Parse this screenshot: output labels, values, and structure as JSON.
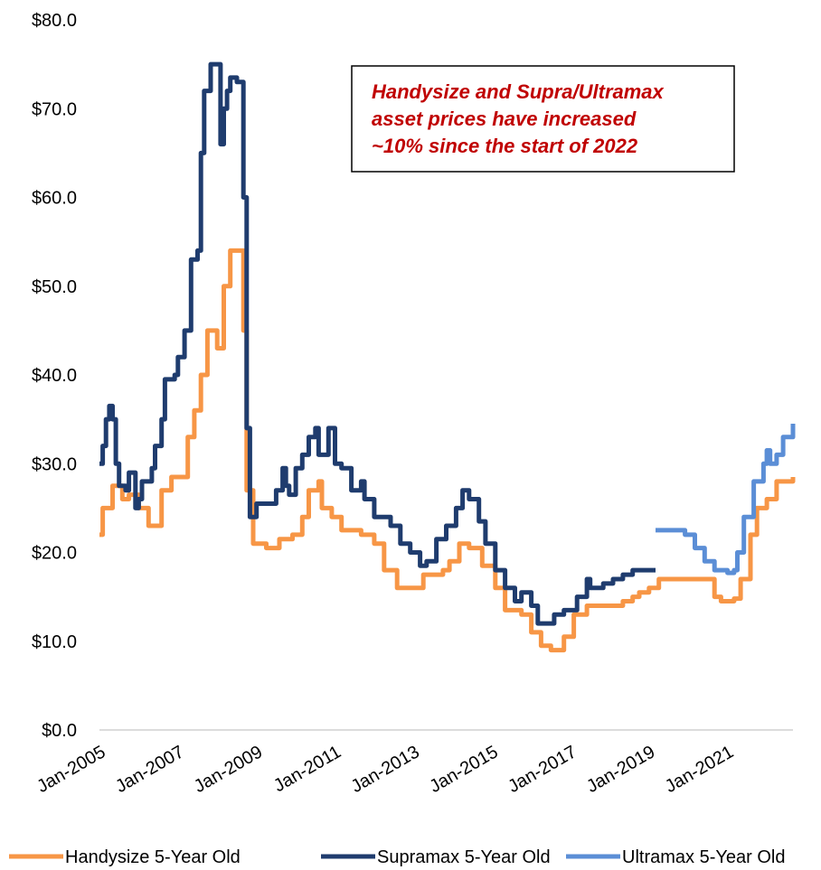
{
  "chart_data": {
    "type": "line",
    "annotation": [
      "Handysize and Supra/Ultramax",
      "asset prices have increased",
      "~10% since the start of 2022"
    ],
    "xlim": [
      "2005-01",
      "2022-09"
    ],
    "xticks": [
      {
        "value": "2005-01",
        "label": "Jan-2005"
      },
      {
        "value": "2007-01",
        "label": "Jan-2007"
      },
      {
        "value": "2009-01",
        "label": "Jan-2009"
      },
      {
        "value": "2011-01",
        "label": "Jan-2011"
      },
      {
        "value": "2013-01",
        "label": "Jan-2013"
      },
      {
        "value": "2015-01",
        "label": "Jan-2015"
      },
      {
        "value": "2017-01",
        "label": "Jan-2017"
      },
      {
        "value": "2019-01",
        "label": "Jan-2019"
      },
      {
        "value": "2021-01",
        "label": "Jan-2021"
      }
    ],
    "ylim": [
      0,
      80
    ],
    "yticks": [
      {
        "value": 0,
        "label": "$0.0"
      },
      {
        "value": 10,
        "label": "$10.0"
      },
      {
        "value": 20,
        "label": "$20.0"
      },
      {
        "value": 30,
        "label": "$30.0"
      },
      {
        "value": 40,
        "label": "$40.0"
      },
      {
        "value": 50,
        "label": "$50.0"
      },
      {
        "value": 60,
        "label": "$60.0"
      },
      {
        "value": 70,
        "label": "$70.0"
      },
      {
        "value": 80,
        "label": "$80.0"
      }
    ],
    "grid": false,
    "legend": "bottom",
    "series": [
      {
        "name": "Handysize 5-Year Old",
        "color": "#f79646",
        "x": [
          "2005-01",
          "2005-02",
          "2005-03",
          "2005-05",
          "2005-08",
          "2005-10",
          "2006-01",
          "2006-04",
          "2006-07",
          "2006-08",
          "2006-11",
          "2007-03",
          "2007-04",
          "2007-06",
          "2007-08",
          "2007-10",
          "2008-01",
          "2008-03",
          "2008-05",
          "2008-08",
          "2008-09",
          "2008-10",
          "2008-12",
          "2009-04",
          "2009-08",
          "2009-12",
          "2010-03",
          "2010-05",
          "2010-08",
          "2010-09",
          "2010-12",
          "2011-03",
          "2011-09",
          "2012-01",
          "2012-04",
          "2012-08",
          "2013-03",
          "2013-04",
          "2013-10",
          "2013-12",
          "2014-03",
          "2014-06",
          "2014-10",
          "2015-02",
          "2015-05",
          "2015-10",
          "2016-01",
          "2016-04",
          "2016-07",
          "2016-11",
          "2017-02",
          "2017-06",
          "2018-01",
          "2018-05",
          "2018-08",
          "2018-10",
          "2019-01",
          "2019-04",
          "2019-12",
          "2020-06",
          "2020-09",
          "2020-11",
          "2021-03",
          "2021-05",
          "2021-08",
          "2021-10",
          "2022-01",
          "2022-04",
          "2022-09"
        ],
        "values": [
          22,
          25,
          25,
          27.5,
          26,
          26.5,
          25,
          23,
          23,
          27,
          28.5,
          28.5,
          33,
          36,
          40,
          45,
          43,
          50,
          54,
          54,
          45,
          27,
          21,
          20.5,
          21.5,
          22,
          24,
          27,
          28,
          25,
          24,
          22.5,
          22,
          21,
          18,
          16,
          16,
          17.5,
          18,
          19,
          21,
          20.5,
          18.5,
          16,
          13.5,
          13,
          11,
          9.5,
          9,
          10.5,
          13,
          14,
          14,
          14.5,
          15,
          15.5,
          16,
          17,
          17,
          17,
          15,
          14.5,
          14.8,
          17,
          22,
          25,
          26,
          28,
          28.5
        ]
      },
      {
        "name": "Supramax 5-Year Old",
        "color": "#1f3c6e",
        "x": [
          "2005-01",
          "2005-02",
          "2005-03",
          "2005-04",
          "2005-05",
          "2005-06",
          "2005-07",
          "2005-09",
          "2005-10",
          "2005-12",
          "2006-01",
          "2006-02",
          "2006-05",
          "2006-06",
          "2006-08",
          "2006-09",
          "2006-12",
          "2007-01",
          "2007-03",
          "2007-05",
          "2007-07",
          "2007-08",
          "2007-09",
          "2007-11",
          "2008-01",
          "2008-02",
          "2008-03",
          "2008-04",
          "2008-05",
          "2008-07",
          "2008-09",
          "2008-10",
          "2008-11",
          "2009-01",
          "2009-06",
          "2009-07",
          "2009-09",
          "2009-10",
          "2009-11",
          "2010-01",
          "2010-03",
          "2010-05",
          "2010-07",
          "2010-08",
          "2010-11",
          "2011-01",
          "2011-03",
          "2011-06",
          "2011-09",
          "2011-10",
          "2012-01",
          "2012-04",
          "2012-06",
          "2012-09",
          "2012-12",
          "2013-03",
          "2013-05",
          "2013-08",
          "2013-11",
          "2014-02",
          "2014-04",
          "2014-06",
          "2014-09",
          "2014-11",
          "2015-02",
          "2015-05",
          "2015-08",
          "2015-10",
          "2016-01",
          "2016-03",
          "2016-05",
          "2016-08",
          "2016-11",
          "2017-03",
          "2017-06",
          "2017-07",
          "2017-11",
          "2018-02",
          "2018-05",
          "2018-08",
          "2019-03"
        ],
        "values": [
          30,
          32,
          35,
          36.5,
          35,
          30,
          27.5,
          27,
          29,
          25,
          26,
          28,
          29.5,
          32,
          35,
          39.5,
          40,
          42,
          45,
          53,
          54,
          65,
          72,
          75,
          75,
          66,
          70,
          72,
          73.5,
          73,
          60,
          34,
          24,
          25.5,
          25.5,
          27,
          29.5,
          27.5,
          26.5,
          29.5,
          31,
          33,
          34,
          31,
          34,
          30,
          29.5,
          27,
          28,
          26,
          24,
          24,
          23,
          21,
          20,
          18.5,
          19,
          21.5,
          23,
          25,
          27,
          26,
          23.5,
          21,
          18,
          16,
          14.5,
          15.5,
          14,
          12,
          12,
          13,
          13.5,
          15,
          17,
          16,
          16.5,
          17,
          17.5,
          18,
          18
        ]
      },
      {
        "name": "Ultramax 5-Year Old",
        "color": "#5b8ed6",
        "x": [
          "2019-03",
          "2019-08",
          "2019-12",
          "2020-03",
          "2020-06",
          "2020-09",
          "2021-01",
          "2021-03",
          "2021-04",
          "2021-06",
          "2021-09",
          "2021-12",
          "2022-01",
          "2022-02",
          "2022-04",
          "2022-06",
          "2022-09"
        ],
        "values": [
          22.5,
          22.5,
          22,
          20.5,
          19,
          18,
          17.7,
          18,
          20,
          24,
          28,
          30,
          31.5,
          30,
          31,
          33,
          34.5
        ]
      }
    ]
  }
}
